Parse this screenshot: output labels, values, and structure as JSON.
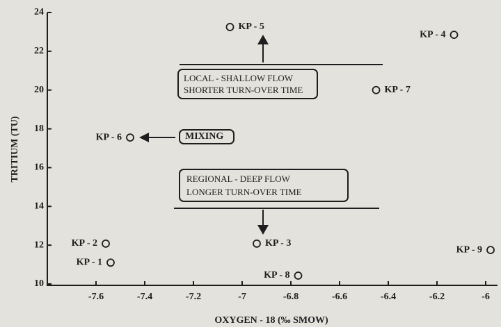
{
  "chart_data": {
    "type": "scatter",
    "y_label": "TRITIUM (TU)",
    "x_label": "OXYGEN - 18 (‰ SMOW)",
    "x": [
      -7.05,
      -6.13,
      -6.45,
      -7.46,
      -7.56,
      -7.54,
      -6.94,
      -6.77,
      -5.98
    ],
    "values": [
      23.25,
      22.85,
      20.0,
      17.55,
      12.08,
      11.1,
      12.08,
      10.43,
      11.75
    ],
    "point_labels": [
      "KP - 5",
      "KP - 4",
      "KP - 7",
      "KP - 6",
      "KP - 2",
      "KP - 1",
      "KP - 3",
      "KP - 8",
      "KP - 9"
    ],
    "xlim": [
      -7.8,
      -5.95
    ],
    "xticks": [
      -7.6,
      -7.4,
      -7.2,
      -7,
      -6.8,
      -6.6,
      -6.4,
      -6.2,
      -6
    ],
    "ylim": [
      10,
      24
    ],
    "yticks": [
      10,
      12,
      14,
      16,
      18,
      20,
      22,
      24
    ],
    "color": "#1e1e1e",
    "annotations": {
      "local": [
        "LOCAL - SHALLOW FLOW",
        "SHORTER TURN-OVER TIME"
      ],
      "mixing": "MIXING",
      "regional": [
        "REGIONAL - DEEP FLOW",
        "LONGER TURN-OVER TIME"
      ]
    }
  }
}
